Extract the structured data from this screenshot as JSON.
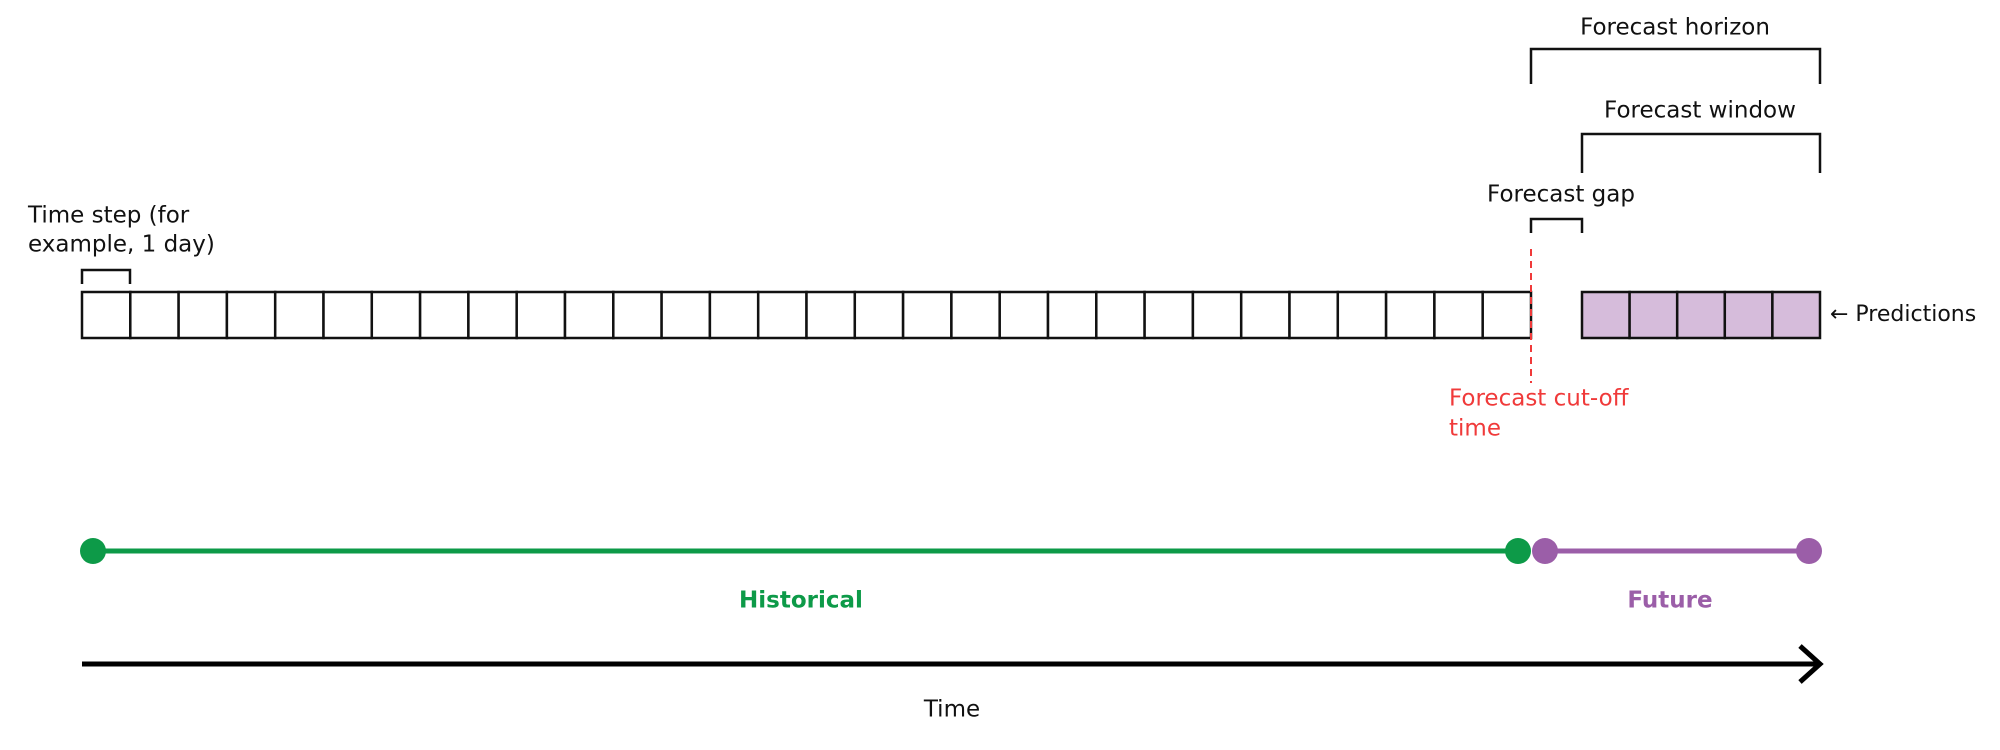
{
  "annotations": {
    "forecast_horizon": "Forecast horizon",
    "forecast_window": "Forecast window",
    "forecast_gap": "Forecast gap",
    "time_step": [
      "Time step (for",
      "example, 1 day)"
    ],
    "predictions": "← Predictions",
    "cutoff": [
      "Forecast cut-off",
      "time"
    ]
  },
  "timeline": {
    "historical": "Historical",
    "future": "Future",
    "axis": "Time"
  }
}
